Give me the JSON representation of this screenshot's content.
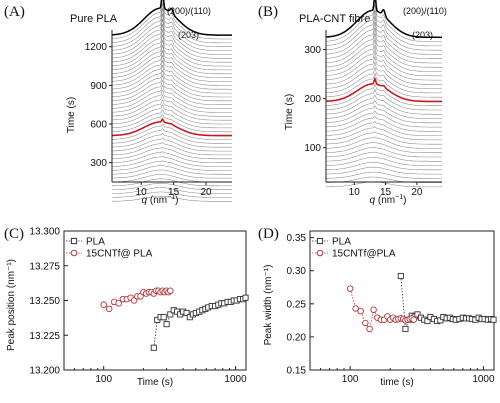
{
  "figure": {
    "panels": {
      "A": {
        "letter": "(A)",
        "title": "Pure PLA",
        "peak_labels": [
          "(200)/(110)",
          "(203)"
        ]
      },
      "B": {
        "letter": "(B)",
        "title": "PLA-CNT fibre",
        "peak_labels": [
          "(200)/(110)",
          "(203)"
        ]
      },
      "C": {
        "letter": "(C)"
      },
      "D": {
        "letter": "(D)"
      }
    }
  },
  "chart_data": [
    {
      "id": "A",
      "type": "line",
      "title": "Pure PLA",
      "xlabel": "q (nm⁻¹)",
      "ylabel": "Time (s)",
      "xlim": [
        5.5,
        24
      ],
      "ylim": [
        150,
        1330
      ],
      "xticks": [
        10,
        15,
        20
      ],
      "yticks": [
        300,
        600,
        900,
        1200
      ],
      "waterfall": {
        "t_start": 0,
        "t_end": 1290,
        "n_curves": 44,
        "highlight_t": 510,
        "highlight_color": "#c8191e",
        "top_color": "#000000"
      },
      "annotations": [
        "(200)/(110)",
        "(203)"
      ]
    },
    {
      "id": "B",
      "type": "line",
      "title": "PLA-CNT fibre",
      "xlabel": "q (nm⁻¹)",
      "ylabel": "Time (s)",
      "xlim": [
        5.5,
        24
      ],
      "ylim": [
        30,
        340
      ],
      "xticks": [
        10,
        15,
        20
      ],
      "yticks": [
        100,
        200,
        300
      ],
      "waterfall": {
        "t_start": 20,
        "t_end": 325,
        "n_curves": 36,
        "highlight_t": 195,
        "highlight_color": "#c8191e",
        "top_color": "#000000"
      },
      "annotations": [
        "(200)/(110)",
        "(203)"
      ]
    },
    {
      "id": "C",
      "type": "scatter",
      "xlabel": "Time (s)",
      "ylabel": "Peak position (nm⁻¹)",
      "xscale": "log",
      "xlim": [
        50,
        1200
      ],
      "ylim": [
        13.2,
        13.3
      ],
      "xticks": [
        100,
        1000
      ],
      "yticks": [
        13.2,
        13.225,
        13.25,
        13.275,
        13.3
      ],
      "ytick_labels": [
        "13.200",
        "13.225",
        "13.250",
        "13.275",
        "13.300"
      ],
      "legend_position": "top-left",
      "series": [
        {
          "name": "PLA",
          "marker": "square",
          "color": "#333333",
          "x": [
            240,
            255,
            270,
            285,
            300,
            320,
            340,
            360,
            380,
            400,
            425,
            450,
            475,
            500,
            530,
            560,
            590,
            620,
            660,
            700,
            740,
            780,
            820,
            870,
            920,
            970,
            1020,
            1080,
            1140,
            1190
          ],
          "y": [
            13.216,
            13.236,
            13.238,
            13.238,
            13.233,
            13.24,
            13.243,
            13.242,
            13.24,
            13.242,
            13.241,
            13.238,
            13.24,
            13.241,
            13.242,
            13.243,
            13.244,
            13.245,
            13.246,
            13.246,
            13.247,
            13.248,
            13.248,
            13.249,
            13.249,
            13.25,
            13.25,
            13.251,
            13.251,
            13.252
          ]
        },
        {
          "name": "15CNTf@ PLA",
          "marker": "circle",
          "color": "#b5373d",
          "x": [
            100,
            110,
            120,
            130,
            140,
            150,
            160,
            170,
            180,
            190,
            200,
            210,
            220,
            230,
            240,
            250,
            260,
            270,
            280,
            290,
            300,
            310,
            320
          ],
          "y": [
            13.247,
            13.244,
            13.249,
            13.248,
            13.251,
            13.251,
            13.252,
            13.25,
            13.253,
            13.253,
            13.256,
            13.255,
            13.256,
            13.256,
            13.255,
            13.257,
            13.257,
            13.256,
            13.257,
            13.256,
            13.257,
            13.256,
            13.257
          ]
        }
      ]
    },
    {
      "id": "D",
      "type": "scatter",
      "xlabel": "time (s)",
      "ylabel": "Peak width (nm⁻¹)",
      "xscale": "log",
      "xlim": [
        50,
        1200
      ],
      "ylim": [
        0.15,
        0.36
      ],
      "xticks": [
        100,
        1000
      ],
      "yticks": [
        0.15,
        0.2,
        0.25,
        0.3,
        0.35
      ],
      "ytick_labels": [
        "0.15",
        "0.20",
        "0.25",
        "0.30",
        "0.35"
      ],
      "legend_position": "top-left",
      "series": [
        {
          "name": "PLA",
          "marker": "square",
          "color": "#333333",
          "x": [
            240,
            260,
            275,
            290,
            305,
            320,
            340,
            360,
            380,
            400,
            425,
            450,
            475,
            500,
            530,
            560,
            590,
            620,
            660,
            700,
            740,
            780,
            820,
            870,
            920,
            970,
            1020,
            1080,
            1140,
            1190
          ],
          "y": [
            0.292,
            0.212,
            0.226,
            0.232,
            0.231,
            0.234,
            0.229,
            0.226,
            0.224,
            0.23,
            0.227,
            0.224,
            0.225,
            0.23,
            0.228,
            0.229,
            0.227,
            0.226,
            0.227,
            0.229,
            0.228,
            0.228,
            0.227,
            0.226,
            0.229,
            0.227,
            0.227,
            0.226,
            0.227,
            0.226
          ]
        },
        {
          "name": "15CNTf@PLA",
          "marker": "circle",
          "color": "#b5373d",
          "x": [
            100,
            110,
            120,
            130,
            140,
            150,
            160,
            170,
            180,
            190,
            200,
            210,
            220,
            230,
            240,
            250,
            260,
            270,
            280,
            290,
            300
          ],
          "y": [
            0.273,
            0.243,
            0.239,
            0.221,
            0.212,
            0.241,
            0.229,
            0.226,
            0.226,
            0.231,
            0.226,
            0.229,
            0.226,
            0.227,
            0.228,
            0.227,
            0.225,
            0.226,
            0.227,
            0.228,
            0.226
          ]
        }
      ]
    }
  ]
}
